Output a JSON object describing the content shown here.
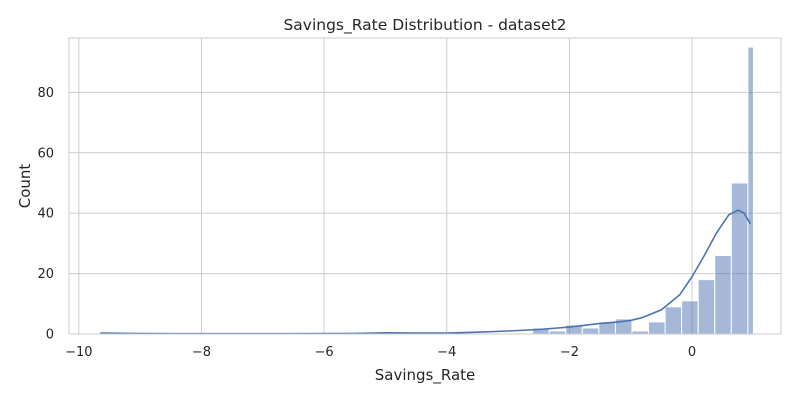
{
  "chart_data": {
    "type": "bar",
    "title": "Savings_Rate Distribution - dataset2",
    "xlabel": "Savings_Rate",
    "ylabel": "Count",
    "xlim": [
      -10.0,
      1.0
    ],
    "ylim": [
      0,
      98
    ],
    "x_ticks": [
      -10,
      -8,
      -6,
      -4,
      -2,
      0
    ],
    "x_tick_labels": [
      "−10",
      "−8",
      "−6",
      "−4",
      "−2",
      "0"
    ],
    "y_ticks": [
      0,
      20,
      40,
      60,
      80
    ],
    "y_tick_labels": [
      "0",
      "20",
      "40",
      "60",
      "80"
    ],
    "grid": true,
    "bar_color": "#4c72b0",
    "kde_color": "#4c72b0",
    "bins": [
      {
        "x0": -2.6,
        "x1": -2.33,
        "count": 2
      },
      {
        "x0": -2.33,
        "x1": -2.06,
        "count": 1
      },
      {
        "x0": -2.06,
        "x1": -1.79,
        "count": 3
      },
      {
        "x0": -1.79,
        "x1": -1.52,
        "count": 2
      },
      {
        "x0": -1.52,
        "x1": -1.25,
        "count": 4
      },
      {
        "x0": -1.25,
        "x1": -0.98,
        "count": 5
      },
      {
        "x0": -0.98,
        "x1": -0.71,
        "count": 1
      },
      {
        "x0": -0.71,
        "x1": -0.44,
        "count": 4
      },
      {
        "x0": -0.44,
        "x1": -0.17,
        "count": 9
      },
      {
        "x0": -0.17,
        "x1": 0.1,
        "count": 11
      },
      {
        "x0": 0.1,
        "x1": 0.37,
        "count": 18
      },
      {
        "x0": 0.37,
        "x1": 0.64,
        "count": 26
      },
      {
        "x0": 0.64,
        "x1": 0.91,
        "count": 50
      },
      {
        "x0": 0.91,
        "x1": 1.0,
        "count": 95
      }
    ],
    "kde": {
      "x": [
        -9.65,
        -9.2,
        -8.5,
        -7.5,
        -6.5,
        -5.5,
        -5.0,
        -4.5,
        -4.0,
        -3.5,
        -3.0,
        -2.5,
        -2.0,
        -1.7,
        -1.5,
        -1.2,
        -1.0,
        -0.8,
        -0.5,
        -0.2,
        0.0,
        0.2,
        0.4,
        0.6,
        0.75,
        0.85,
        0.95
      ],
      "y": [
        0.3,
        0.2,
        0.1,
        0.1,
        0.1,
        0.2,
        0.4,
        0.3,
        0.3,
        0.6,
        1.0,
        1.5,
        2.3,
        3.0,
        3.5,
        4.0,
        4.5,
        5.5,
        8.0,
        13.0,
        19.0,
        26.0,
        33.5,
        39.5,
        41.0,
        40.0,
        36.5
      ]
    }
  }
}
